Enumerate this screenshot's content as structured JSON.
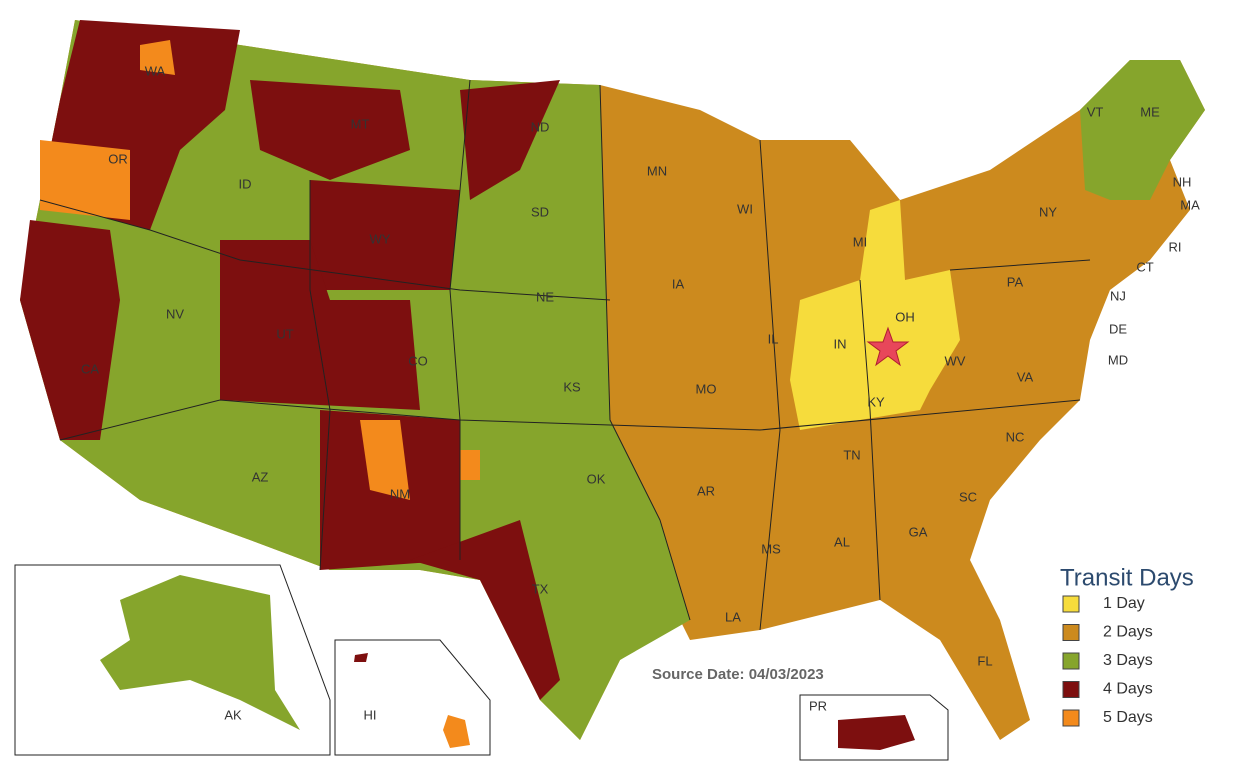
{
  "legend": {
    "title": "Transit Days",
    "items": [
      {
        "label": "1 Day",
        "color": "#f6dc3c"
      },
      {
        "label": "2 Days",
        "color": "#cc8a1e"
      },
      {
        "label": "3 Days",
        "color": "#86a52c"
      },
      {
        "label": "4 Days",
        "color": "#7d0f0f"
      },
      {
        "label": "5 Days",
        "color": "#f38a1c"
      }
    ]
  },
  "source": "Source Date: 04/03/2023",
  "state_labels": [
    "WA",
    "OR",
    "CA",
    "NV",
    "ID",
    "MT",
    "WY",
    "UT",
    "AZ",
    "CO",
    "NM",
    "ND",
    "SD",
    "NE",
    "KS",
    "OK",
    "TX",
    "MN",
    "IA",
    "MO",
    "AR",
    "LA",
    "WI",
    "IL",
    "MI",
    "IN",
    "OH",
    "KY",
    "TN",
    "MS",
    "AL",
    "GA",
    "FL",
    "SC",
    "NC",
    "VA",
    "WV",
    "PA",
    "NY",
    "VT",
    "ME",
    "NH",
    "MA",
    "RI",
    "CT",
    "NJ",
    "DE",
    "MD",
    "AK",
    "HI",
    "PR"
  ]
}
